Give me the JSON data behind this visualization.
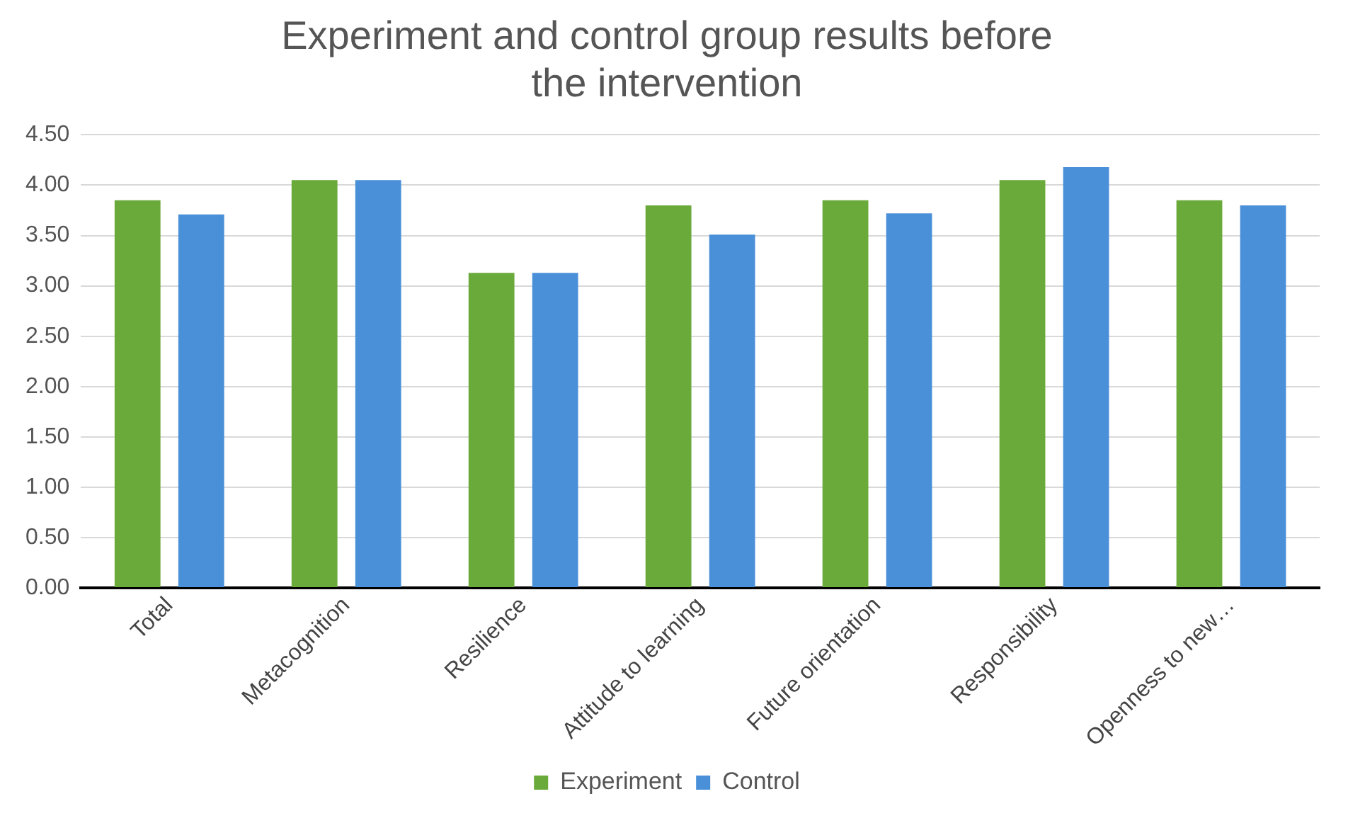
{
  "chart_data": {
    "type": "bar",
    "title": [
      "Experiment and control group results before",
      "the intervention"
    ],
    "categories": [
      "Total",
      "Metacognition",
      "Resilience",
      "Attitude to learning",
      "Future orientation",
      "Responsibility",
      "Openness to new…"
    ],
    "series": [
      {
        "name": "Experiment",
        "color": "#6aaa3a",
        "values": [
          3.85,
          4.05,
          3.13,
          3.8,
          3.85,
          4.05,
          3.85
        ]
      },
      {
        "name": "Control",
        "color": "#4a90d9",
        "values": [
          3.71,
          4.05,
          3.13,
          3.51,
          3.72,
          4.18,
          3.8
        ]
      }
    ],
    "ylim": [
      0,
      4.5
    ],
    "yticks": [
      {
        "value": 0,
        "label": "0.00"
      },
      {
        "value": 0.5,
        "label": "0.50"
      },
      {
        "value": 1,
        "label": "1.00"
      },
      {
        "value": 1.5,
        "label": "1.50"
      },
      {
        "value": 2,
        "label": "2.00"
      },
      {
        "value": 2.5,
        "label": "2.50"
      },
      {
        "value": 3,
        "label": "3.00"
      },
      {
        "value": 3.5,
        "label": "3.50"
      },
      {
        "value": 4,
        "label": "4.00"
      },
      {
        "value": 4.5,
        "label": "4.50"
      }
    ],
    "grid": "y",
    "legend": "bottom"
  }
}
